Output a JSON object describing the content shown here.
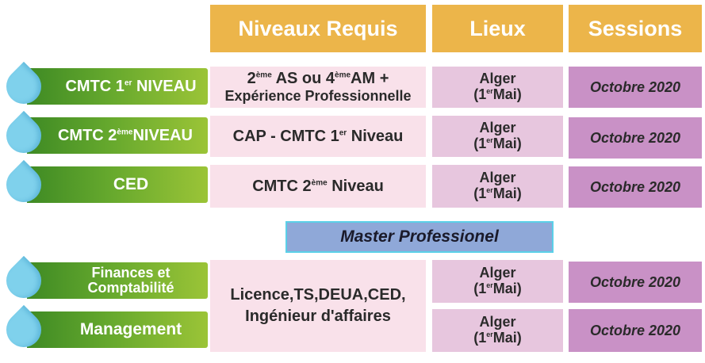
{
  "headers": {
    "niveaux": "Niveaux  Requis",
    "lieux": "Lieux",
    "sessions": "Sessions"
  },
  "master_title": "Master Professionel",
  "rows": [
    {
      "program": "CMTC 1",
      "program_sup": "er",
      "program_suffix": " NIVEAU",
      "level_l1_a": "2",
      "level_l1_sup_a": "ème",
      "level_l1_b": " AS ou  4",
      "level_l1_sup_b": "ème",
      "level_l1_c": "AM +",
      "level_l2": "Expérience Professionnelle",
      "city": "Alger",
      "site_pre": "(1",
      "site_sup": "er",
      "site_post": "Mai)",
      "session": "Octobre 2020"
    },
    {
      "program": "CMTC 2",
      "program_sup": "ème",
      "program_suffix": "NIVEAU",
      "level_a": "CAP - CMTC 1",
      "level_sup": "er",
      "level_b": "  Niveau",
      "city": "Alger",
      "site_pre": "(1",
      "site_sup": "er",
      "site_post": "Mai)",
      "session": "Octobre 2020"
    },
    {
      "program": "CED",
      "level_a": "CMTC 2",
      "level_sup": "ème",
      "level_b": "  Niveau",
      "city": "Alger",
      "site_pre": "(1",
      "site_sup": "er",
      "site_post": "Mai)",
      "session": "Octobre 2020"
    }
  ],
  "master_rows": [
    {
      "program_l1": "Finances et",
      "program_l2": "Comptabilité",
      "city": "Alger",
      "site_pre": "(1",
      "site_sup": "er",
      "site_post": "Mai)",
      "session": "Octobre 2020"
    },
    {
      "program": "Management",
      "city": "Alger",
      "site_pre": "(1",
      "site_sup": "er",
      "site_post": "Mai)",
      "session": "Octobre 2020"
    }
  ],
  "master_level": {
    "line1": "Licence,TS,DEUA,CED,",
    "line2": "Ingénieur d'affaires"
  }
}
